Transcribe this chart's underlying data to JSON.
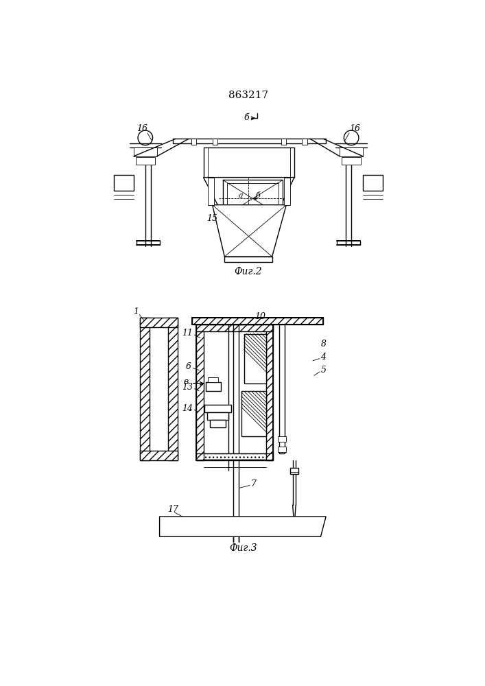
{
  "title": "863217",
  "fig2_label": "Фиг.2",
  "fig3_label": "Фиг.3",
  "bg_color": "#ffffff",
  "line_color": "#000000"
}
